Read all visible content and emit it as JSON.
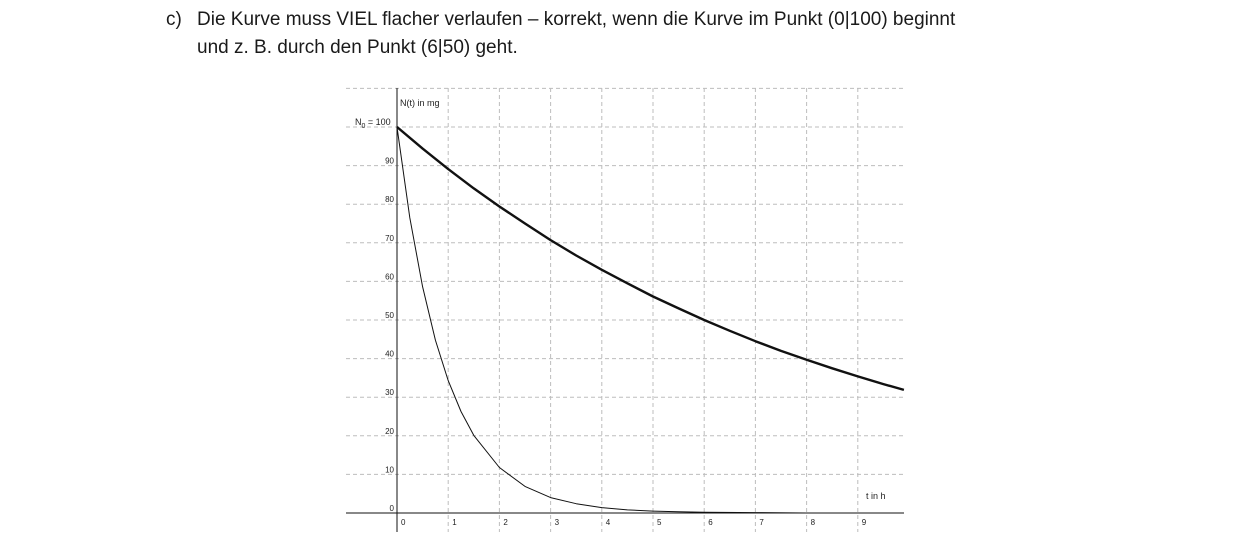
{
  "task": {
    "label": "c)",
    "line1": "Die Kurve muss VIEL flacher verlaufen – korrekt, wenn die Kurve im Punkt (0|100) beginnt",
    "line2": "und z. B. durch den Punkt (6|50) geht."
  },
  "chart_data": {
    "type": "line",
    "title": "",
    "ylabel": "N(t) in mg",
    "xlabel": "t in h",
    "n0_label": "N",
    "n0_sub": "0",
    "n0_value_text": " = 100",
    "xlim": [
      -1,
      10
    ],
    "ylim": [
      -0.5,
      110
    ],
    "x_ticks": [
      0,
      1,
      2,
      3,
      4,
      5,
      6,
      7,
      8,
      9
    ],
    "y_ticks": [
      0,
      10,
      20,
      30,
      40,
      50,
      60,
      70,
      80,
      90
    ],
    "grid": true,
    "series": [
      {
        "style": "thick",
        "x": [
          0,
          0.5,
          1,
          1.5,
          2,
          2.5,
          3,
          3.5,
          4,
          4.5,
          5,
          5.5,
          6,
          6.5,
          7,
          7.5,
          8,
          8.5,
          9,
          9.5,
          9.9
        ],
        "y": [
          100,
          94.4,
          89.1,
          84.1,
          79.4,
          75.0,
          70.7,
          66.7,
          63.0,
          59.5,
          56.1,
          53.0,
          50.0,
          47.2,
          44.5,
          42.0,
          39.7,
          37.5,
          35.4,
          33.4,
          31.9
        ]
      },
      {
        "style": "thin",
        "x": [
          0,
          0.25,
          0.5,
          0.75,
          1,
          1.25,
          1.5,
          2,
          2.5,
          3,
          3.5,
          4,
          4.5,
          5,
          5.5,
          6,
          7,
          8,
          9,
          9.9
        ],
        "y": [
          100,
          76.5,
          58.6,
          44.8,
          34.3,
          26.3,
          20.1,
          11.8,
          6.9,
          4.0,
          2.4,
          1.4,
          0.8,
          0.5,
          0.3,
          0.2,
          0.1,
          0.0,
          0.0,
          0.0
        ]
      }
    ]
  }
}
